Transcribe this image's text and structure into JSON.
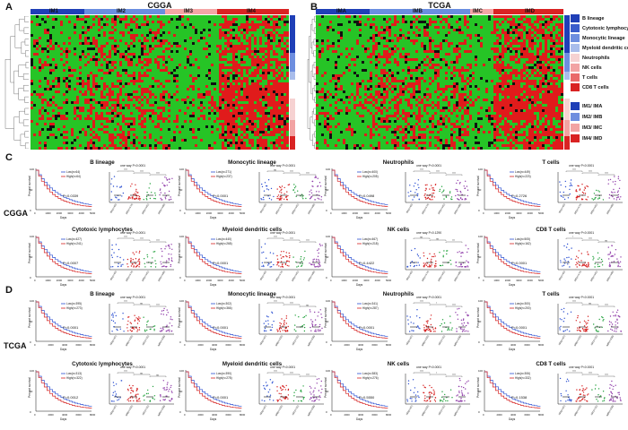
{
  "figure": {
    "panel_labels": {
      "A": "A",
      "B": "B",
      "C": "C",
      "D": "D"
    },
    "heatmaps": [
      {
        "id": "A",
        "title": "CGGA",
        "clusters": [
          "IM1",
          "IM2",
          "IM3",
          "IM4"
        ],
        "cluster_colors": [
          "#1f3fb7",
          "#6a8ee0",
          "#f4a6a6",
          "#d92323"
        ]
      },
      {
        "id": "B",
        "title": "TCGA",
        "clusters": [
          "IMA",
          "IMB",
          "IMC",
          "IMD"
        ],
        "cluster_colors": [
          "#1f3fb7",
          "#6a8ee0",
          "#f4a6a6",
          "#d92323"
        ]
      }
    ],
    "legend": {
      "cell_types": [
        {
          "label": "B lineage",
          "color": "#1f3fb7"
        },
        {
          "label": "Cytotoxic lymphocytes",
          "color": "#3a5ccb"
        },
        {
          "label": "Monocytic lineage",
          "color": "#6e8edf"
        },
        {
          "label": "Myeloid dendritic cells",
          "color": "#a9bdeb"
        },
        {
          "label": "Neutrophils",
          "color": "#f6d2d2"
        },
        {
          "label": "NK cells",
          "color": "#f2a3a3"
        },
        {
          "label": "T cells",
          "color": "#ea6a6a"
        },
        {
          "label": "CD8 T cells",
          "color": "#d92323"
        }
      ],
      "clusters": [
        {
          "label": "IM1/ IMA",
          "color": "#1f3fb7"
        },
        {
          "label": "IM2/ IMB",
          "color": "#6e8edf"
        },
        {
          "label": "IM3/ IMC",
          "color": "#f2a3a3"
        },
        {
          "label": "IM4/ IMD",
          "color": "#d92323"
        }
      ]
    },
    "cohort_labels": {
      "C": "CGGA",
      "D": "TCGA"
    },
    "axis_text": {
      "percent": "Percent survival",
      "days": "Days"
    },
    "colors": {
      "low": "#2b4fd1",
      "high": "#d62222",
      "heat_green": "#26c426",
      "heat_red": "#e01b1b",
      "heat_black": "#101010"
    }
  },
  "chart_data": [
    {
      "type": "scatter",
      "panel": "C",
      "cell": "B lineage",
      "km": {
        "low": "Low(n=64)",
        "high": "High(n=64)",
        "p": "P=0.0339"
      },
      "anova": "one way P<0.0001",
      "x_ticks": [
        "0",
        "1000",
        "2000",
        "3000",
        "4000",
        "5000"
      ],
      "groups": [
        "IM1(n=62)",
        "IM2(n=174)",
        "IM3(n=101)",
        "IM4(n=188)"
      ],
      "sig": [
        "****",
        "****",
        "****"
      ]
    },
    {
      "type": "scatter",
      "panel": "C",
      "cell": "Monocytic lineage",
      "km": {
        "low": "Low(n=271)",
        "high": "High(n=237)",
        "p": "P<0.0001"
      },
      "anova": "one way P<0.0001",
      "x_ticks": [
        "0",
        "1000",
        "2000",
        "3000",
        "4000",
        "5000"
      ],
      "groups": [
        "IM1(n=62)",
        "IM2(n=174)",
        "IM3(n=101)",
        "IM4(n=188)"
      ],
      "sig": [
        "ns",
        "****",
        "****"
      ]
    },
    {
      "type": "scatter",
      "panel": "C",
      "cell": "Neutrophils",
      "km": {
        "low": "Low(n=400)",
        "high": "High(n=205)",
        "p": "P=0.0498"
      },
      "anova": "one way P<0.0001",
      "x_ticks": [
        "0",
        "1000",
        "2000",
        "3000",
        "4000",
        "5000"
      ],
      "groups": [
        "IM1(n=62)",
        "IM2(n=174)",
        "IM3(n=101)",
        "IM4(n=188)"
      ],
      "sig": [
        "****",
        "****",
        "****"
      ]
    },
    {
      "type": "scatter",
      "panel": "C",
      "cell": "T cells",
      "km": {
        "low": "Low(n=449)",
        "high": "High(n=223)",
        "p": "P=0.2726"
      },
      "anova": "one way P<0.0001",
      "x_ticks": [
        "0",
        "1000",
        "2000",
        "3000",
        "4000",
        "5000"
      ],
      "groups": [
        "IM1(n=62)",
        "IM2(n=174)",
        "IM3(n=101)",
        "IM4(n=188)"
      ],
      "sig": [
        "****",
        "****",
        "****"
      ]
    },
    {
      "type": "scatter",
      "panel": "C",
      "cell": "Cytotoxic lymphocytes",
      "km": {
        "low": "Low(n=427)",
        "high": "High(n=241)",
        "p": "P=0.0007"
      },
      "anova": "one way P<0.0001",
      "x_ticks": [
        "0",
        "1000",
        "2000",
        "3000",
        "4000",
        "5000"
      ],
      "groups": [
        "IM1(n=62)",
        "IM2(n=174)",
        "IM3(n=101)",
        "IM4(n=188)"
      ],
      "sig": [
        "****",
        "****",
        "****"
      ]
    },
    {
      "type": "scatter",
      "panel": "C",
      "cell": "Myeloid dendritic cells",
      "km": {
        "low": "Low(n=440)",
        "high": "High(n=268)",
        "p": "P<0.0001"
      },
      "anova": "one way P<0.0001",
      "x_ticks": [
        "0",
        "1000",
        "2000",
        "3000",
        "4000",
        "5000"
      ],
      "groups": [
        "IM1(n=62)",
        "IM2(n=174)",
        "IM3(n=101)",
        "IM4(n=188)"
      ],
      "sig": [
        "****",
        "****",
        "****"
      ]
    },
    {
      "type": "scatter",
      "panel": "C",
      "cell": "NK cells",
      "km": {
        "low": "Low(n=467)",
        "high": "High(n=218)",
        "p": "P=0.4422"
      },
      "anova": "one way P=0.1290",
      "x_ticks": [
        "0",
        "1000",
        "2000",
        "3000",
        "4000",
        "5000"
      ],
      "groups": [
        "IM1(n=62)",
        "IM2(n=174)",
        "IM3(n=101)",
        "IM4(n=188)"
      ],
      "sig": [
        "ns",
        "ns",
        "***"
      ]
    },
    {
      "type": "scatter",
      "panel": "C",
      "cell": "CD8 T cells",
      "km": {
        "low": "Low(n=505)",
        "high": "High(n=162)",
        "p": "P<0.0001"
      },
      "anova": "one way P<0.0001",
      "x_ticks": [
        "0",
        "1000",
        "2000",
        "3000",
        "4000",
        "5000"
      ],
      "groups": [
        "IM1(n=62)",
        "IM2(n=174)",
        "IM3(n=101)",
        "IM4(n=188)"
      ],
      "sig": [
        "*",
        "****",
        "ns"
      ]
    },
    {
      "type": "scatter",
      "panel": "D",
      "cell": "B lineage",
      "km": {
        "low": "Low(n=395)",
        "high": "High(n=273)",
        "p": "P<0.0001"
      },
      "anova": "one way P<0.0001",
      "x_ticks": [
        "0",
        "2000",
        "4000",
        "6000",
        "8000"
      ],
      "groups": [
        "IMA(n=67)",
        "IMB(n=232)",
        "IMC(n=31)",
        "IMD(n=336)"
      ],
      "sig": [
        "****",
        "ns",
        "****"
      ]
    },
    {
      "type": "scatter",
      "panel": "D",
      "cell": "Monocytic lineage",
      "km": {
        "low": "Low(n=302)",
        "high": "High(n=366)",
        "p": "P<0.0001"
      },
      "anova": "one way P<0.0001",
      "x_ticks": [
        "0",
        "2000",
        "4000",
        "6000",
        "8000"
      ],
      "groups": [
        "IMA(n=67)",
        "IMB(n=232)",
        "IMC(n=31)",
        "IMD(n=336)"
      ],
      "sig": [
        "****",
        "****",
        "ns"
      ]
    },
    {
      "type": "scatter",
      "panel": "D",
      "cell": "Neutrophils",
      "km": {
        "low": "Low(n=341)",
        "high": "High(n=287)",
        "p": "P<0.0001"
      },
      "anova": "one way P<0.0001",
      "x_ticks": [
        "0",
        "2000",
        "4000",
        "6000",
        "8000"
      ],
      "groups": [
        "IMA(n=67)",
        "IMB(n=232)",
        "IMC(n=31)",
        "IMD(n=336)"
      ],
      "sig": [
        "****",
        "*",
        "****"
      ]
    },
    {
      "type": "scatter",
      "panel": "D",
      "cell": "T cells",
      "km": {
        "low": "Low(n=300)",
        "high": "High(n=200)",
        "p": "P<0.0001"
      },
      "anova": "one way P<0.0001",
      "x_ticks": [
        "0",
        "2000",
        "4000",
        "6000",
        "8000"
      ],
      "groups": [
        "IMA(n=67)",
        "IMB(n=232)",
        "IMC(n=31)",
        "IMD(n=336)"
      ],
      "sig": [
        "****",
        "ns",
        "****"
      ]
    },
    {
      "type": "scatter",
      "panel": "D",
      "cell": "Cytotoxic lymphocytes",
      "km": {
        "low": "Low(n=313)",
        "high": "High(n=322)",
        "p": "P=0.0012"
      },
      "anova": "one way P<0.0001",
      "x_ticks": [
        "0",
        "2000",
        "4000",
        "6000",
        "8000"
      ],
      "groups": [
        "IMA(n=67)",
        "IMB(n=232)",
        "IMC(n=31)",
        "IMD(n=336)"
      ],
      "sig": [
        "****",
        "ns",
        "ns"
      ]
    },
    {
      "type": "scatter",
      "panel": "D",
      "cell": "Myeloid dendritic cells",
      "km": {
        "low": "Low(n=390)",
        "high": "High(n=278)",
        "p": "P<0.0001"
      },
      "anova": "one way P<0.0001",
      "x_ticks": [
        "0",
        "2000",
        "4000",
        "6000",
        "8000"
      ],
      "groups": [
        "IMA(n=67)",
        "IMB(n=232)",
        "IMC(n=31)",
        "IMD(n=336)"
      ],
      "sig": [
        "****",
        "****",
        "****"
      ]
    },
    {
      "type": "scatter",
      "panel": "D",
      "cell": "NK cells",
      "km": {
        "low": "Low(n=383)",
        "high": "High(n=276)",
        "p": "P=0.5550"
      },
      "anova": "one way P<0.0001",
      "x_ticks": [
        "0",
        "2000",
        "4000",
        "6000",
        "8000"
      ],
      "groups": [
        "IMA(n=67)",
        "IMB(n=232)",
        "IMC(n=31)",
        "IMD(n=336)"
      ],
      "sig": [
        "****",
        "*",
        "****"
      ]
    },
    {
      "type": "scatter",
      "panel": "D",
      "cell": "CD8 T cells",
      "km": {
        "low": "Low(n=306)",
        "high": "High(n=332)",
        "p": "P=0.1538"
      },
      "anova": "one way P<0.0001",
      "x_ticks": [
        "0",
        "2000",
        "4000",
        "6000",
        "8000"
      ],
      "groups": [
        "IMA(n=67)",
        "IMB(n=232)",
        "IMC(n=31)",
        "IMD(n=336)"
      ],
      "sig": [
        "****",
        "****",
        "****"
      ]
    }
  ]
}
